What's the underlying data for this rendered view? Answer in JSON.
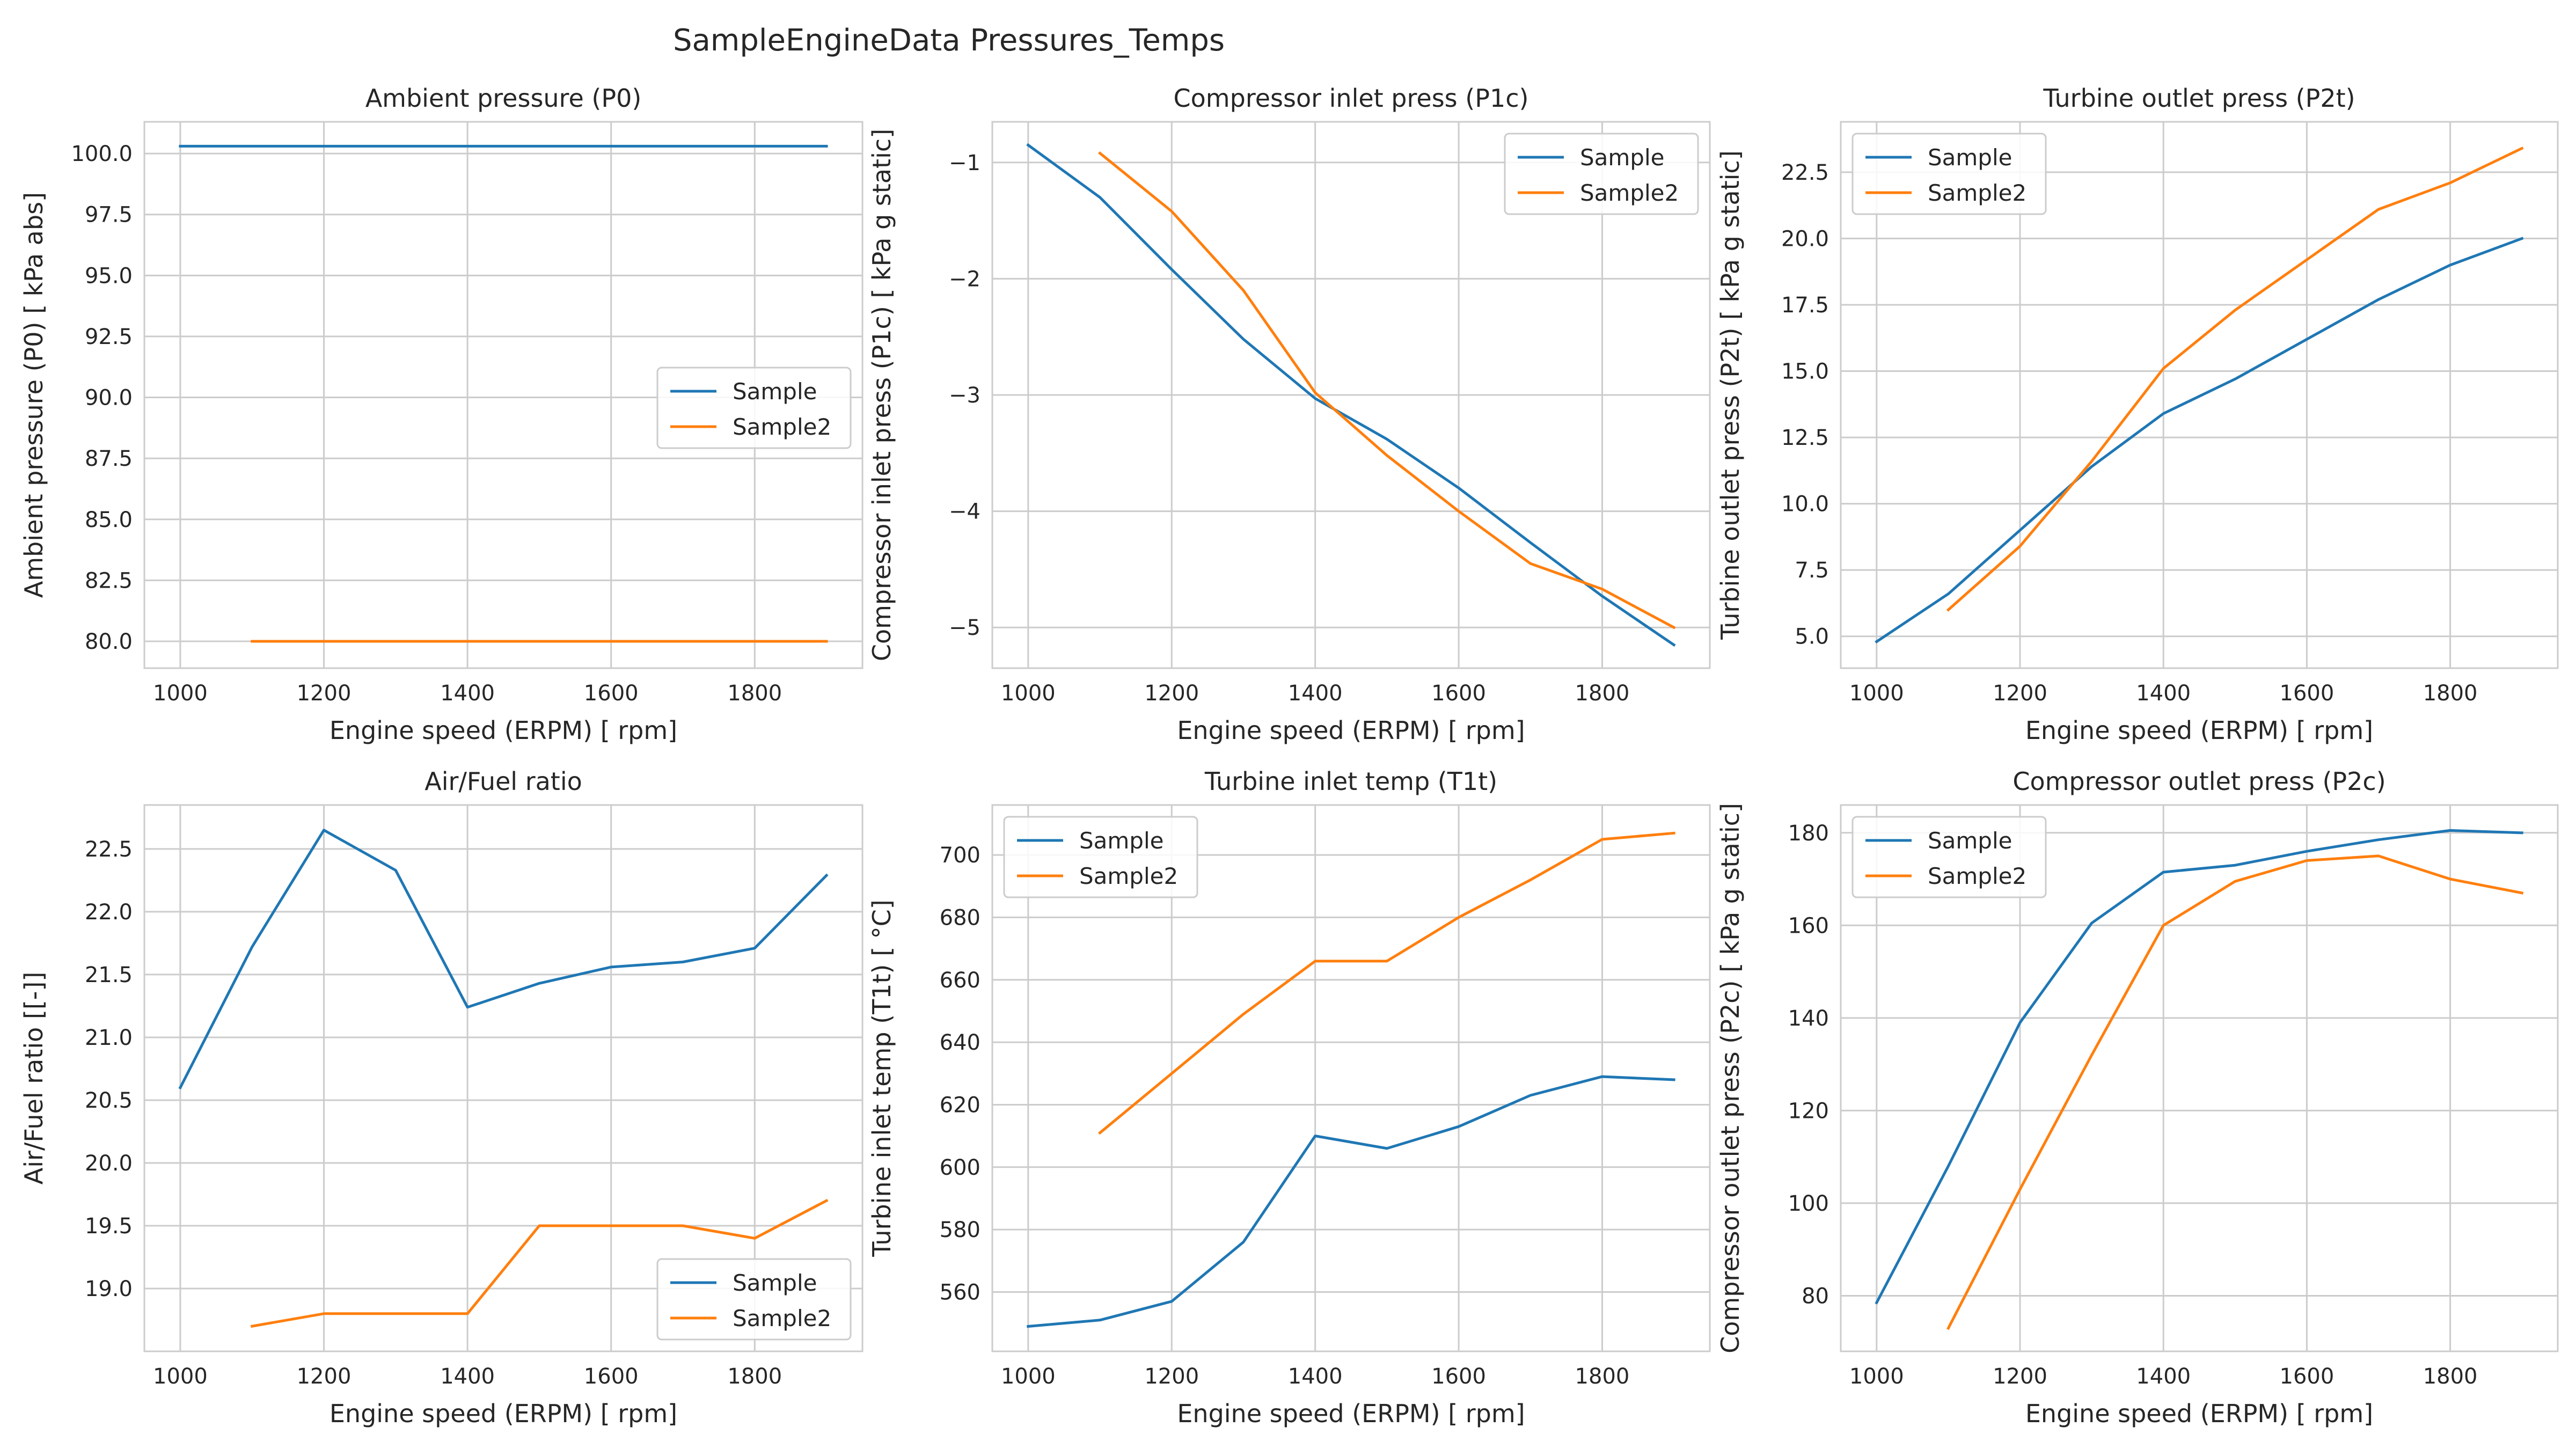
{
  "figure": {
    "title": "SampleEngineData Pressures_Temps"
  },
  "chart_data": [
    {
      "type": "line",
      "title": "Ambient pressure (P0)",
      "xlabel": "Engine speed (ERPM) [ rpm]",
      "ylabel": "Ambient pressure (P0) [ kPa abs]",
      "xlim": [
        950,
        1950
      ],
      "ylim": [
        78.9,
        101.3
      ],
      "xticks": [
        1000,
        1200,
        1400,
        1600,
        1800
      ],
      "yticks": [
        80.0,
        82.5,
        85.0,
        87.5,
        90.0,
        92.5,
        95.0,
        97.5,
        100.0
      ],
      "ytick_labels": [
        "80.0",
        "82.5",
        "85.0",
        "87.5",
        "90.0",
        "92.5",
        "95.0",
        "97.5",
        "100.0"
      ],
      "grid": true,
      "legend_position": "center-right",
      "series": [
        {
          "name": "Sample",
          "color": "#1f77b4",
          "x": [
            1000,
            1100,
            1200,
            1300,
            1400,
            1500,
            1600,
            1700,
            1800,
            1900
          ],
          "y": [
            100.3,
            100.3,
            100.3,
            100.3,
            100.3,
            100.3,
            100.3,
            100.3,
            100.3,
            100.3
          ]
        },
        {
          "name": "Sample2",
          "color": "#ff7f0e",
          "x": [
            1100,
            1200,
            1300,
            1400,
            1500,
            1600,
            1700,
            1800,
            1900
          ],
          "y": [
            80.0,
            80.0,
            80.0,
            80.0,
            80.0,
            80.0,
            80.0,
            80.0,
            80.0
          ]
        }
      ]
    },
    {
      "type": "line",
      "title": "Compressor inlet press (P1c)",
      "xlabel": "Engine speed (ERPM) [ rpm]",
      "ylabel": "Compressor inlet press (P1c) [ kPa g static]",
      "xlim": [
        950,
        1950
      ],
      "ylim": [
        -5.35,
        -0.65
      ],
      "xticks": [
        1000,
        1200,
        1400,
        1600,
        1800
      ],
      "yticks": [
        -5,
        -4,
        -3,
        -2,
        -1
      ],
      "ytick_labels": [
        "−5",
        "−4",
        "−3",
        "−2",
        "−1"
      ],
      "grid": true,
      "legend_position": "top-right",
      "series": [
        {
          "name": "Sample",
          "color": "#1f77b4",
          "x": [
            1000,
            1100,
            1200,
            1300,
            1400,
            1500,
            1600,
            1700,
            1800,
            1900
          ],
          "y": [
            -0.85,
            -1.3,
            -1.92,
            -2.52,
            -3.03,
            -3.38,
            -3.8,
            -4.27,
            -4.73,
            -5.15
          ]
        },
        {
          "name": "Sample2",
          "color": "#ff7f0e",
          "x": [
            1100,
            1200,
            1300,
            1400,
            1500,
            1600,
            1700,
            1800,
            1900
          ],
          "y": [
            -0.92,
            -1.42,
            -2.1,
            -2.98,
            -3.52,
            -4.0,
            -4.45,
            -4.67,
            -5.0
          ]
        }
      ]
    },
    {
      "type": "line",
      "title": "Turbine outlet press (P2t)",
      "xlabel": "Engine speed (ERPM) [ rpm]",
      "ylabel": "Turbine outlet press (P2t) [ kPa g static]",
      "xlim": [
        950,
        1950
      ],
      "ylim": [
        3.8,
        24.4
      ],
      "xticks": [
        1000,
        1200,
        1400,
        1600,
        1800
      ],
      "yticks": [
        5.0,
        7.5,
        10.0,
        12.5,
        15.0,
        17.5,
        20.0,
        22.5
      ],
      "ytick_labels": [
        "5.0",
        "7.5",
        "10.0",
        "12.5",
        "15.0",
        "17.5",
        "20.0",
        "22.5"
      ],
      "grid": true,
      "legend_position": "top-left",
      "series": [
        {
          "name": "Sample",
          "color": "#1f77b4",
          "x": [
            1000,
            1100,
            1200,
            1300,
            1400,
            1500,
            1600,
            1700,
            1800,
            1900
          ],
          "y": [
            4.8,
            6.6,
            9.0,
            11.4,
            13.4,
            14.7,
            16.2,
            17.7,
            19.0,
            20.0
          ]
        },
        {
          "name": "Sample2",
          "color": "#ff7f0e",
          "x": [
            1100,
            1200,
            1300,
            1400,
            1500,
            1600,
            1700,
            1800,
            1900
          ],
          "y": [
            6.0,
            8.4,
            11.6,
            15.1,
            17.3,
            19.2,
            21.1,
            22.1,
            23.4
          ]
        }
      ]
    },
    {
      "type": "line",
      "title": "Air/Fuel ratio",
      "xlabel": "Engine speed (ERPM) [ rpm]",
      "ylabel": "Air/Fuel ratio [[-]]",
      "xlim": [
        950,
        1950
      ],
      "ylim": [
        18.5,
        22.85
      ],
      "xticks": [
        1000,
        1200,
        1400,
        1600,
        1800
      ],
      "yticks": [
        19.0,
        19.5,
        20.0,
        20.5,
        21.0,
        21.5,
        22.0,
        22.5
      ],
      "ytick_labels": [
        "19.0",
        "19.5",
        "20.0",
        "20.5",
        "21.0",
        "21.5",
        "22.0",
        "22.5"
      ],
      "grid": true,
      "legend_position": "bottom-right",
      "series": [
        {
          "name": "Sample",
          "color": "#1f77b4",
          "x": [
            1000,
            1100,
            1200,
            1300,
            1400,
            1500,
            1600,
            1700,
            1800,
            1900
          ],
          "y": [
            20.6,
            21.72,
            22.65,
            22.33,
            21.24,
            21.43,
            21.56,
            21.6,
            21.71,
            22.29
          ]
        },
        {
          "name": "Sample2",
          "color": "#ff7f0e",
          "x": [
            1100,
            1200,
            1300,
            1400,
            1500,
            1600,
            1700,
            1800,
            1900
          ],
          "y": [
            18.7,
            18.8,
            18.8,
            18.8,
            19.5,
            19.5,
            19.5,
            19.4,
            19.7
          ]
        }
      ]
    },
    {
      "type": "line",
      "title": "Turbine inlet temp (T1t)",
      "xlabel": "Engine speed (ERPM) [ rpm]",
      "ylabel": "Turbine inlet temp (T1t) [ °C]",
      "xlim": [
        950,
        1950
      ],
      "ylim": [
        541,
        716
      ],
      "xticks": [
        1000,
        1200,
        1400,
        1600,
        1800
      ],
      "yticks": [
        560,
        580,
        600,
        620,
        640,
        660,
        680,
        700
      ],
      "ytick_labels": [
        "560",
        "580",
        "600",
        "620",
        "640",
        "660",
        "680",
        "700"
      ],
      "grid": true,
      "legend_position": "top-left",
      "series": [
        {
          "name": "Sample",
          "color": "#1f77b4",
          "x": [
            1000,
            1100,
            1200,
            1300,
            1400,
            1500,
            1600,
            1700,
            1800,
            1900
          ],
          "y": [
            549,
            551,
            557,
            576,
            610,
            606,
            613,
            623,
            629,
            628
          ]
        },
        {
          "name": "Sample2",
          "color": "#ff7f0e",
          "x": [
            1100,
            1200,
            1300,
            1400,
            1500,
            1600,
            1700,
            1800,
            1900
          ],
          "y": [
            611,
            630,
            649,
            666,
            666,
            680,
            692,
            705,
            707
          ]
        }
      ]
    },
    {
      "type": "line",
      "title": "Compressor outlet press (P2c)",
      "xlabel": "Engine speed (ERPM) [ rpm]",
      "ylabel": "Compressor outlet press (P2c) [ kPa g static]",
      "xlim": [
        950,
        1950
      ],
      "ylim": [
        68,
        186
      ],
      "xticks": [
        1000,
        1200,
        1400,
        1600,
        1800
      ],
      "yticks": [
        80,
        100,
        120,
        140,
        160,
        180
      ],
      "ytick_labels": [
        "80",
        "100",
        "120",
        "140",
        "160",
        "180"
      ],
      "grid": true,
      "legend_position": "top-left",
      "series": [
        {
          "name": "Sample",
          "color": "#1f77b4",
          "x": [
            1000,
            1100,
            1200,
            1300,
            1400,
            1500,
            1600,
            1700,
            1800,
            1900
          ],
          "y": [
            78.5,
            108,
            139,
            160.5,
            171.5,
            173,
            176,
            178.5,
            180.5,
            180
          ]
        },
        {
          "name": "Sample2",
          "color": "#ff7f0e",
          "x": [
            1100,
            1200,
            1300,
            1400,
            1500,
            1600,
            1700,
            1800,
            1900
          ],
          "y": [
            73,
            103,
            132,
            160,
            169.5,
            174,
            175,
            170,
            167
          ]
        }
      ]
    }
  ]
}
